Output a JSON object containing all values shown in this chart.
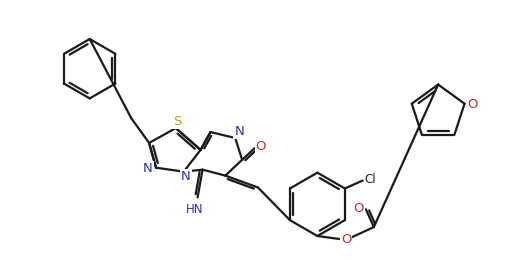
{
  "bg_color": "#ffffff",
  "line_color": "#1a1a1a",
  "atom_colors": {
    "S": "#c8a000",
    "N": "#3030b0",
    "O": "#c03030",
    "Cl": "#202020",
    "C": "#1a1a1a"
  },
  "line_width": 1.6,
  "font_size": 8.5,
  "figsize": [
    5.14,
    2.76
  ],
  "dpi": 100
}
